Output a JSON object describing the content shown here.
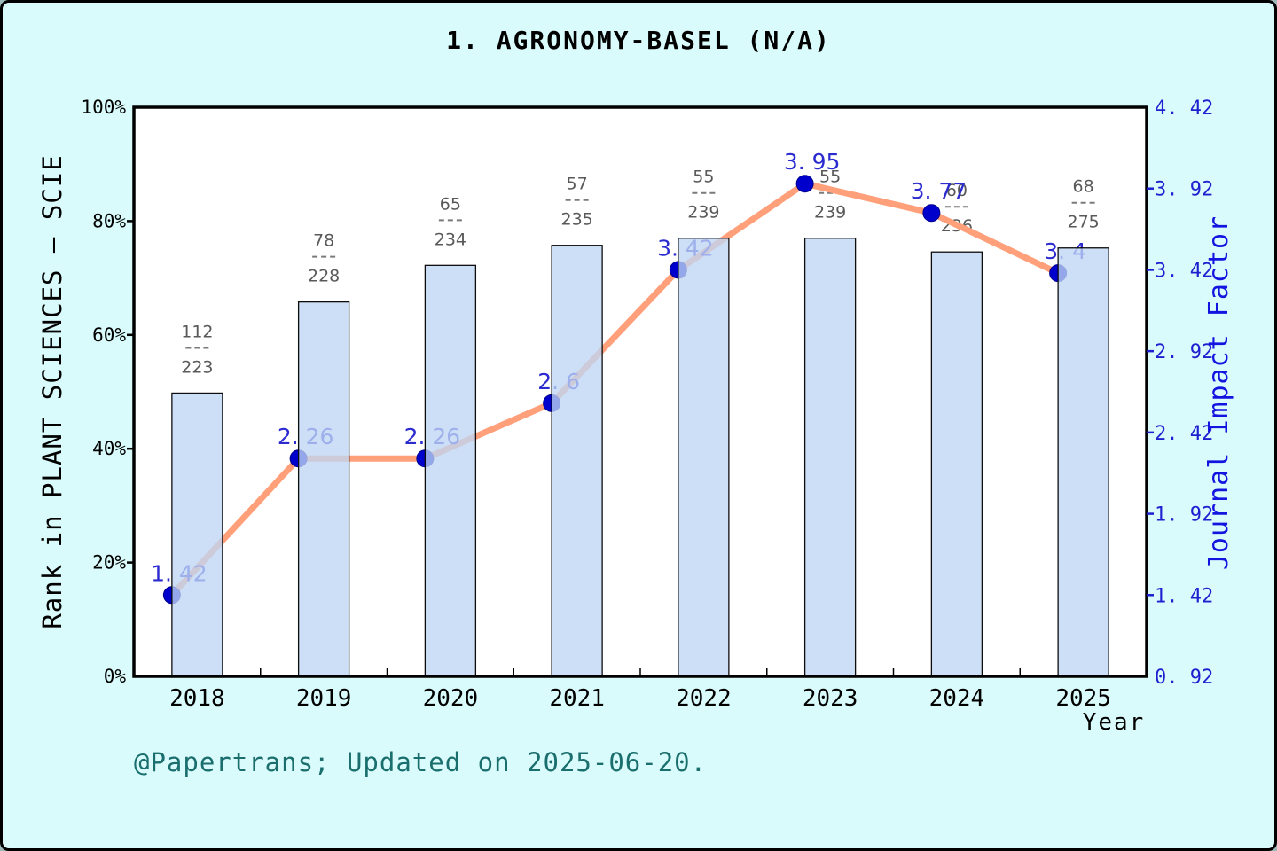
{
  "window": {
    "title": "1.  AGRONOMY-BASEL (N/A)"
  },
  "footer": {
    "credit": "@Papertrans; Updated on 2025-06-20."
  },
  "chart_data": {
    "type": "bar",
    "title": "1.  AGRONOMY-BASEL (N/A)",
    "categories": [
      "2018",
      "2019",
      "2020",
      "2021",
      "2022",
      "2023",
      "2024",
      "2025"
    ],
    "xlabel": "Year",
    "series": [
      {
        "name": "Rank in PLANT SCIENCES – SCIE",
        "type": "bar",
        "yaxis": "left",
        "rank": [
          112,
          78,
          65,
          57,
          55,
          55,
          60,
          68
        ],
        "total": [
          223,
          228,
          234,
          235,
          239,
          239,
          236,
          275
        ],
        "bar_labels": [
          "112/223",
          "78/228",
          "65/234",
          "57/235",
          "55/239",
          "55/239",
          "60/236",
          "68/275"
        ],
        "percent": [
          49.78,
          65.79,
          72.22,
          75.74,
          76.99,
          76.99,
          74.58,
          75.27
        ]
      },
      {
        "name": "Journal Impact Factor",
        "type": "line",
        "yaxis": "right",
        "values": [
          1.42,
          2.26,
          2.26,
          2.6,
          3.42,
          3.95,
          3.77,
          3.4
        ],
        "point_labels": [
          "1. 42",
          "2. 26",
          "2. 26",
          "2. 6",
          "3. 42",
          "3. 95",
          "3. 77",
          "3. 4"
        ]
      }
    ],
    "left_axis": {
      "label": "Rank in PLANT SCIENCES – SCIE",
      "ticks": [
        "0%",
        "20%",
        "40%",
        "60%",
        "80%",
        "100%"
      ],
      "tick_values": [
        0,
        20,
        40,
        60,
        80,
        100
      ],
      "range": [
        0,
        100
      ]
    },
    "right_axis": {
      "label": "Journal Impact Factor",
      "ticks": [
        "0. 92",
        "1. 42",
        "1. 92",
        "2. 42",
        "2. 92",
        "3. 42",
        "3. 92",
        "4. 42"
      ],
      "tick_values": [
        0.92,
        1.42,
        1.92,
        2.42,
        2.92,
        3.42,
        3.92,
        4.42
      ],
      "range": [
        0.92,
        4.42
      ]
    },
    "grid": "off",
    "legend": "none",
    "colors": {
      "background": "#D9FBFB",
      "plot_background": "#FFFFFF",
      "bar_fill": "#BFD6F3",
      "bar_edge": "#0D0D0D",
      "line": "#FFA07A",
      "marker": "#0000CD",
      "marker_edge": "#00008B",
      "point_label": "#2B2BD0",
      "fraction_label": "#595959",
      "fraction_dash": "#7A7A7A",
      "right_axis_text": "#1F1FD0",
      "axis_frame": "#000000",
      "footer_text": "#1B6E6E"
    }
  }
}
